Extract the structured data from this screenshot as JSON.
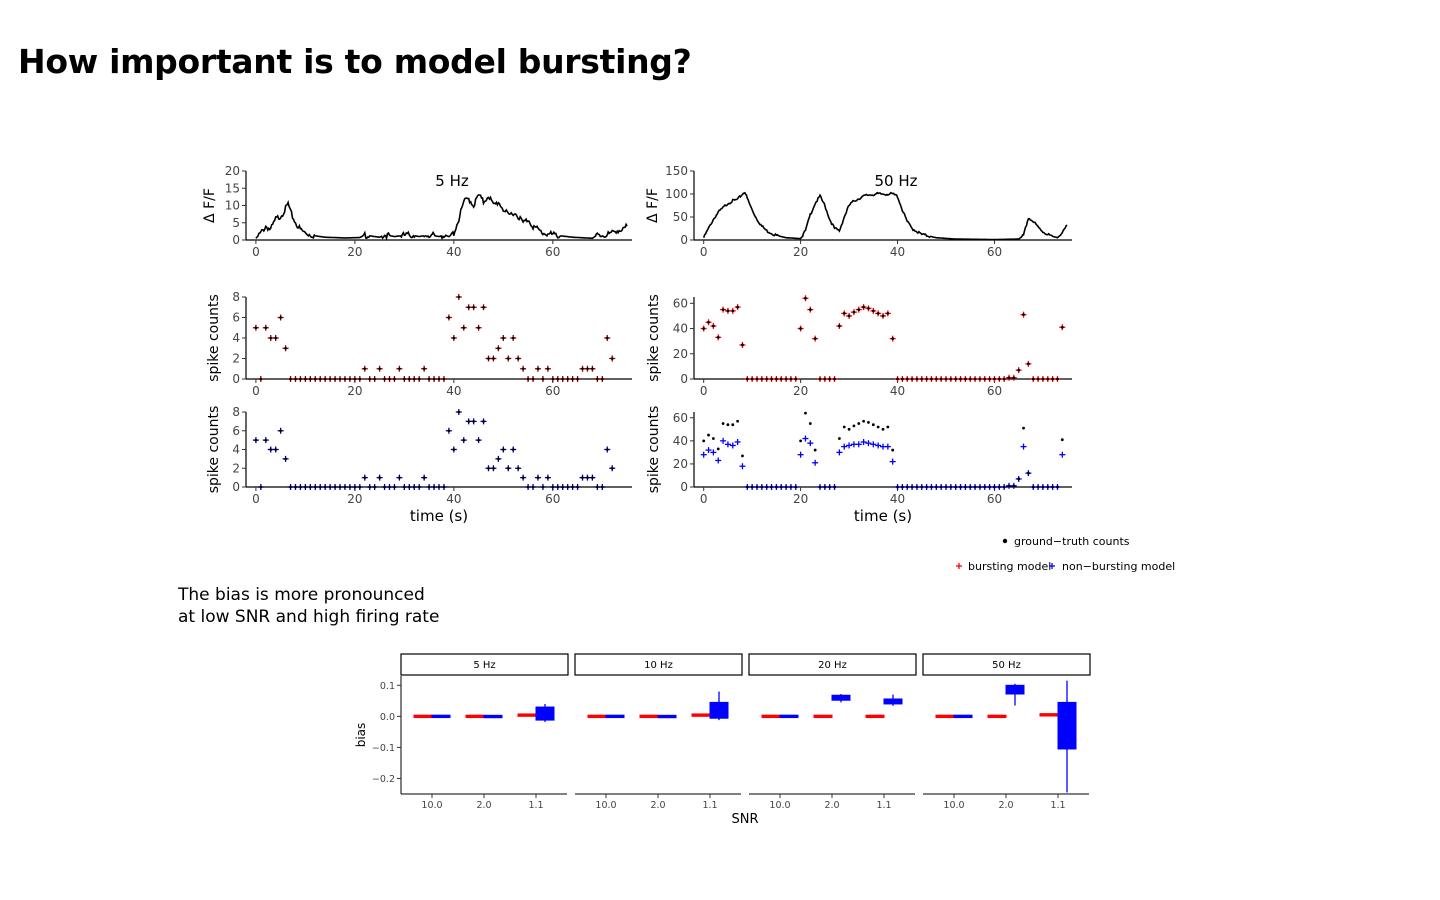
{
  "page": {
    "title": "How important is to model bursting?",
    "note_line1": "The bias is more pronounced",
    "note_line2": "at low SNR and high firing rate"
  },
  "legend": {
    "gt": "ground−truth counts",
    "bursting": "bursting model",
    "nonbursting": "non−bursting model"
  },
  "colors": {
    "bursting": "#ff0000",
    "nonbursting": "#0000ff",
    "gt": "#000000",
    "burst_dark": "#8b0000",
    "nonburst_dark": "#00008b"
  },
  "chart_data": [
    {
      "type": "line",
      "panel": "trace-5hz",
      "title": "5 Hz",
      "ylabel": "Δ F/F",
      "xlabel": "",
      "xlim": [
        -2,
        76
      ],
      "ylim": [
        0,
        20
      ],
      "xticks": [
        0,
        20,
        40,
        60
      ],
      "yticks": [
        0,
        5,
        10,
        15,
        20
      ],
      "keypoints": [
        [
          0,
          0.5
        ],
        [
          1,
          2
        ],
        [
          2,
          4
        ],
        [
          3,
          3
        ],
        [
          4,
          6
        ],
        [
          5,
          7
        ],
        [
          6,
          9
        ],
        [
          6.5,
          10.5
        ],
        [
          7,
          8
        ],
        [
          8,
          5
        ],
        [
          9,
          3
        ],
        [
          10,
          2
        ],
        [
          12,
          1.2
        ],
        [
          14,
          0.8
        ],
        [
          18,
          0.6
        ],
        [
          21,
          0.7
        ],
        [
          22,
          1.5
        ],
        [
          23,
          1.2
        ],
        [
          25,
          0.8
        ],
        [
          26,
          1.5
        ],
        [
          28,
          1
        ],
        [
          31,
          1.5
        ],
        [
          33,
          1
        ],
        [
          35,
          1.5
        ],
        [
          37,
          1
        ],
        [
          38,
          1.5
        ],
        [
          39,
          1
        ],
        [
          40,
          2
        ],
        [
          41,
          6
        ],
        [
          42,
          11
        ],
        [
          43,
          12
        ],
        [
          44,
          10
        ],
        [
          45,
          13
        ],
        [
          46,
          11
        ],
        [
          47,
          13
        ],
        [
          48,
          10
        ],
        [
          49,
          11
        ],
        [
          50,
          9
        ],
        [
          51,
          7
        ],
        [
          52,
          8
        ],
        [
          53,
          7
        ],
        [
          54,
          5
        ],
        [
          55,
          6
        ],
        [
          56,
          4
        ],
        [
          58,
          2
        ],
        [
          60,
          1.5
        ],
        [
          64,
          0.8
        ],
        [
          68,
          0.5
        ],
        [
          69,
          1.5
        ],
        [
          70,
          1.2
        ],
        [
          72,
          2
        ],
        [
          73,
          3
        ],
        [
          74,
          2.5
        ],
        [
          75,
          4
        ]
      ]
    },
    {
      "type": "line",
      "panel": "trace-50hz",
      "title": "50 Hz",
      "ylabel": "Δ F/F",
      "xlabel": "",
      "xlim": [
        -2,
        76
      ],
      "ylim": [
        0,
        150
      ],
      "xticks": [
        0,
        20,
        40,
        60
      ],
      "yticks": [
        0,
        50,
        100,
        150
      ],
      "keypoints": [
        [
          0,
          5
        ],
        [
          1,
          25
        ],
        [
          2,
          45
        ],
        [
          3,
          60
        ],
        [
          4,
          70
        ],
        [
          5,
          80
        ],
        [
          6,
          85
        ],
        [
          7,
          88
        ],
        [
          8,
          100
        ],
        [
          8.5,
          105
        ],
        [
          9,
          90
        ],
        [
          10,
          65
        ],
        [
          11,
          45
        ],
        [
          12,
          30
        ],
        [
          13,
          20
        ],
        [
          15,
          10
        ],
        [
          17,
          5
        ],
        [
          20,
          3
        ],
        [
          21,
          20
        ],
        [
          22,
          55
        ],
        [
          23,
          80
        ],
        [
          24,
          95
        ],
        [
          25,
          75
        ],
        [
          26,
          45
        ],
        [
          27,
          25
        ],
        [
          28,
          20
        ],
        [
          29,
          50
        ],
        [
          30,
          75
        ],
        [
          31,
          85
        ],
        [
          32,
          90
        ],
        [
          33,
          95
        ],
        [
          34,
          98
        ],
        [
          36,
          100
        ],
        [
          38,
          100
        ],
        [
          39,
          100
        ],
        [
          40,
          95
        ],
        [
          41,
          65
        ],
        [
          42,
          40
        ],
        [
          43,
          25
        ],
        [
          45,
          12
        ],
        [
          48,
          5
        ],
        [
          52,
          2
        ],
        [
          60,
          1
        ],
        [
          65,
          2
        ],
        [
          66,
          10
        ],
        [
          67,
          48
        ],
        [
          68,
          40
        ],
        [
          69,
          28
        ],
        [
          70,
          18
        ],
        [
          71,
          12
        ],
        [
          72,
          8
        ],
        [
          73,
          5
        ],
        [
          74,
          15
        ],
        [
          75,
          32
        ]
      ]
    },
    {
      "type": "scatter",
      "panel": "counts-5hz-bursting",
      "ylabel": "spike counts",
      "xlim": [
        -2,
        76
      ],
      "ylim": [
        0,
        8
      ],
      "xticks": [
        0,
        20,
        40,
        60
      ],
      "yticks": [
        0,
        2,
        4,
        6,
        8
      ],
      "gt": [
        5,
        0,
        5,
        4,
        4,
        6,
        3,
        0,
        0,
        0,
        0,
        0,
        0,
        0,
        0,
        0,
        0,
        0,
        0,
        0,
        0,
        0,
        1,
        0,
        0,
        1,
        0,
        0,
        0,
        1,
        0,
        0,
        0,
        0,
        1,
        0,
        0,
        0,
        0,
        6,
        4,
        8,
        5,
        7,
        7,
        5,
        7,
        2,
        2,
        3,
        4,
        2,
        4,
        2,
        1,
        0,
        0,
        1,
        0,
        1,
        0,
        0,
        0,
        0,
        0,
        0,
        1,
        1,
        1,
        0,
        0,
        4,
        2
      ],
      "gt_x_start": 0,
      "gt_x_step": 1,
      "model": "same-as-gt"
    },
    {
      "type": "scatter",
      "panel": "counts-50hz-bursting",
      "ylabel": "spike counts",
      "xlim": [
        -2,
        76
      ],
      "ylim": [
        0,
        65
      ],
      "xticks": [
        0,
        20,
        40,
        60
      ],
      "yticks": [
        0,
        20,
        40,
        60
      ],
      "points": [
        [
          0,
          40
        ],
        [
          1,
          45
        ],
        [
          2,
          42
        ],
        [
          3,
          33
        ],
        [
          4,
          55
        ],
        [
          5,
          54
        ],
        [
          6,
          54
        ],
        [
          7,
          57
        ],
        [
          8,
          27
        ],
        [
          9,
          0
        ],
        [
          10,
          0
        ],
        [
          11,
          0
        ],
        [
          12,
          0
        ],
        [
          13,
          0
        ],
        [
          14,
          0
        ],
        [
          15,
          0
        ],
        [
          16,
          0
        ],
        [
          17,
          0
        ],
        [
          18,
          0
        ],
        [
          19,
          0
        ],
        [
          20,
          40
        ],
        [
          21,
          64
        ],
        [
          22,
          55
        ],
        [
          23,
          32
        ],
        [
          24,
          0
        ],
        [
          25,
          0
        ],
        [
          26,
          0
        ],
        [
          27,
          0
        ],
        [
          28,
          42
        ],
        [
          29,
          52
        ],
        [
          30,
          50
        ],
        [
          31,
          53
        ],
        [
          32,
          55
        ],
        [
          33,
          57
        ],
        [
          34,
          56
        ],
        [
          35,
          54
        ],
        [
          36,
          52
        ],
        [
          37,
          50
        ],
        [
          38,
          52
        ],
        [
          39,
          32
        ],
        [
          40,
          0
        ],
        [
          41,
          0
        ],
        [
          42,
          0
        ],
        [
          43,
          0
        ],
        [
          44,
          0
        ],
        [
          45,
          0
        ],
        [
          46,
          0
        ],
        [
          47,
          0
        ],
        [
          48,
          0
        ],
        [
          49,
          0
        ],
        [
          50,
          0
        ],
        [
          51,
          0
        ],
        [
          52,
          0
        ],
        [
          53,
          0
        ],
        [
          54,
          0
        ],
        [
          55,
          0
        ],
        [
          56,
          0
        ],
        [
          57,
          0
        ],
        [
          58,
          0
        ],
        [
          59,
          0
        ],
        [
          60,
          0
        ],
        [
          61,
          0
        ],
        [
          62,
          0
        ],
        [
          63,
          1
        ],
        [
          64,
          1
        ],
        [
          65,
          7
        ],
        [
          66,
          51
        ],
        [
          67,
          12
        ],
        [
          68,
          0
        ],
        [
          69,
          0
        ],
        [
          70,
          0
        ],
        [
          71,
          0
        ],
        [
          72,
          0
        ],
        [
          73,
          0
        ],
        [
          74,
          41
        ]
      ]
    },
    {
      "type": "scatter",
      "panel": "counts-5hz-nonbursting",
      "ylabel": "spike counts",
      "xlabel": "time (s)",
      "xlim": [
        -2,
        76
      ],
      "ylim": [
        0,
        8
      ],
      "xticks": [
        0,
        20,
        40,
        60
      ],
      "yticks": [
        0,
        2,
        4,
        6,
        8
      ],
      "model": "same-as-gt"
    },
    {
      "type": "scatter",
      "panel": "counts-50hz-nonbursting",
      "ylabel": "spike counts",
      "xlabel": "time (s)",
      "xlim": [
        -2,
        76
      ],
      "ylim": [
        0,
        65
      ],
      "xticks": [
        0,
        20,
        40,
        60
      ],
      "yticks": [
        0,
        20,
        40,
        60
      ],
      "model_values": [
        [
          0,
          28
        ],
        [
          1,
          32
        ],
        [
          2,
          30
        ],
        [
          3,
          23
        ],
        [
          4,
          40
        ],
        [
          5,
          37
        ],
        [
          6,
          36
        ],
        [
          7,
          39
        ],
        [
          8,
          18
        ],
        [
          20,
          28
        ],
        [
          21,
          42
        ],
        [
          22,
          38
        ],
        [
          23,
          21
        ],
        [
          28,
          30
        ],
        [
          29,
          35
        ],
        [
          30,
          36
        ],
        [
          31,
          37
        ],
        [
          32,
          37
        ],
        [
          33,
          39
        ],
        [
          34,
          38
        ],
        [
          35,
          37
        ],
        [
          36,
          36
        ],
        [
          37,
          35
        ],
        [
          38,
          35
        ],
        [
          39,
          22
        ],
        [
          66,
          35
        ],
        [
          67,
          12
        ],
        [
          74,
          28
        ]
      ]
    },
    {
      "type": "box",
      "panel": "bias-facets",
      "xlabel": "SNR",
      "ylabel": "bias",
      "ylim": [
        -0.25,
        0.13
      ],
      "yticks": [
        0.1,
        0.0,
        -0.1,
        -0.2
      ],
      "ytick_labels": [
        "0.1",
        "0.0",
        "−0.1",
        "−0.2"
      ],
      "categories": [
        "10.0",
        "2.0",
        "1.1"
      ],
      "facets": [
        {
          "label": "5 Hz",
          "bursting": [
            {
              "q1": 0,
              "q3": 0,
              "med": 0,
              "lo": 0,
              "hi": 0
            },
            {
              "q1": 0,
              "q3": 0,
              "med": 0,
              "lo": 0,
              "hi": 0
            },
            {
              "q1": 0.002,
              "q3": 0.006,
              "med": 0.004,
              "lo": 0.002,
              "hi": 0.006
            }
          ],
          "nonbursting": [
            {
              "q1": 0,
              "q3": 0,
              "med": 0,
              "lo": 0,
              "hi": 0
            },
            {
              "q1": -0.002,
              "q3": 0.001,
              "med": 0,
              "lo": -0.002,
              "hi": 0.001
            },
            {
              "q1": -0.012,
              "q3": 0.03,
              "med": 0.012,
              "lo": -0.018,
              "hi": 0.04
            }
          ]
        },
        {
          "label": "10 Hz",
          "bursting": [
            {
              "q1": 0,
              "q3": 0,
              "med": 0,
              "lo": 0,
              "hi": 0
            },
            {
              "q1": 0,
              "q3": 0,
              "med": 0,
              "lo": 0,
              "hi": 0
            },
            {
              "q1": 0.002,
              "q3": 0.006,
              "med": 0.004,
              "lo": 0.002,
              "hi": 0.006
            }
          ],
          "nonbursting": [
            {
              "q1": 0,
              "q3": 0,
              "med": 0,
              "lo": 0,
              "hi": 0
            },
            {
              "q1": -0.002,
              "q3": 0.001,
              "med": 0,
              "lo": -0.002,
              "hi": 0.001
            },
            {
              "q1": -0.006,
              "q3": 0.045,
              "med": 0.01,
              "lo": -0.012,
              "hi": 0.08
            }
          ]
        },
        {
          "label": "20 Hz",
          "bursting": [
            {
              "q1": 0,
              "q3": 0,
              "med": 0,
              "lo": 0,
              "hi": 0
            },
            {
              "q1": 0,
              "q3": 0,
              "med": 0,
              "lo": 0,
              "hi": 0
            },
            {
              "q1": 0,
              "q3": 0,
              "med": 0,
              "lo": 0,
              "hi": 0
            }
          ],
          "nonbursting": [
            {
              "q1": 0,
              "q3": 0,
              "med": 0,
              "lo": 0,
              "hi": 0
            },
            {
              "q1": 0.052,
              "q3": 0.068,
              "med": 0.06,
              "lo": 0.045,
              "hi": 0.072
            },
            {
              "q1": 0.04,
              "q3": 0.056,
              "med": 0.048,
              "lo": 0.034,
              "hi": 0.07
            }
          ]
        },
        {
          "label": "50 Hz",
          "bursting": [
            {
              "q1": 0,
              "q3": 0,
              "med": 0,
              "lo": 0,
              "hi": 0
            },
            {
              "q1": 0,
              "q3": 0,
              "med": 0,
              "lo": 0,
              "hi": 0
            },
            {
              "q1": 0.002,
              "q3": 0.008,
              "med": 0.005,
              "lo": 0.002,
              "hi": 0.008
            }
          ],
          "nonbursting": [
            {
              "q1": 0,
              "q3": 0,
              "med": 0,
              "lo": 0,
              "hi": 0
            },
            {
              "q1": 0.072,
              "q3": 0.1,
              "med": 0.09,
              "lo": 0.035,
              "hi": 0.105
            },
            {
              "q1": -0.105,
              "q3": 0.045,
              "med": 0.0,
              "lo": -0.245,
              "hi": 0.115
            }
          ]
        }
      ]
    }
  ]
}
